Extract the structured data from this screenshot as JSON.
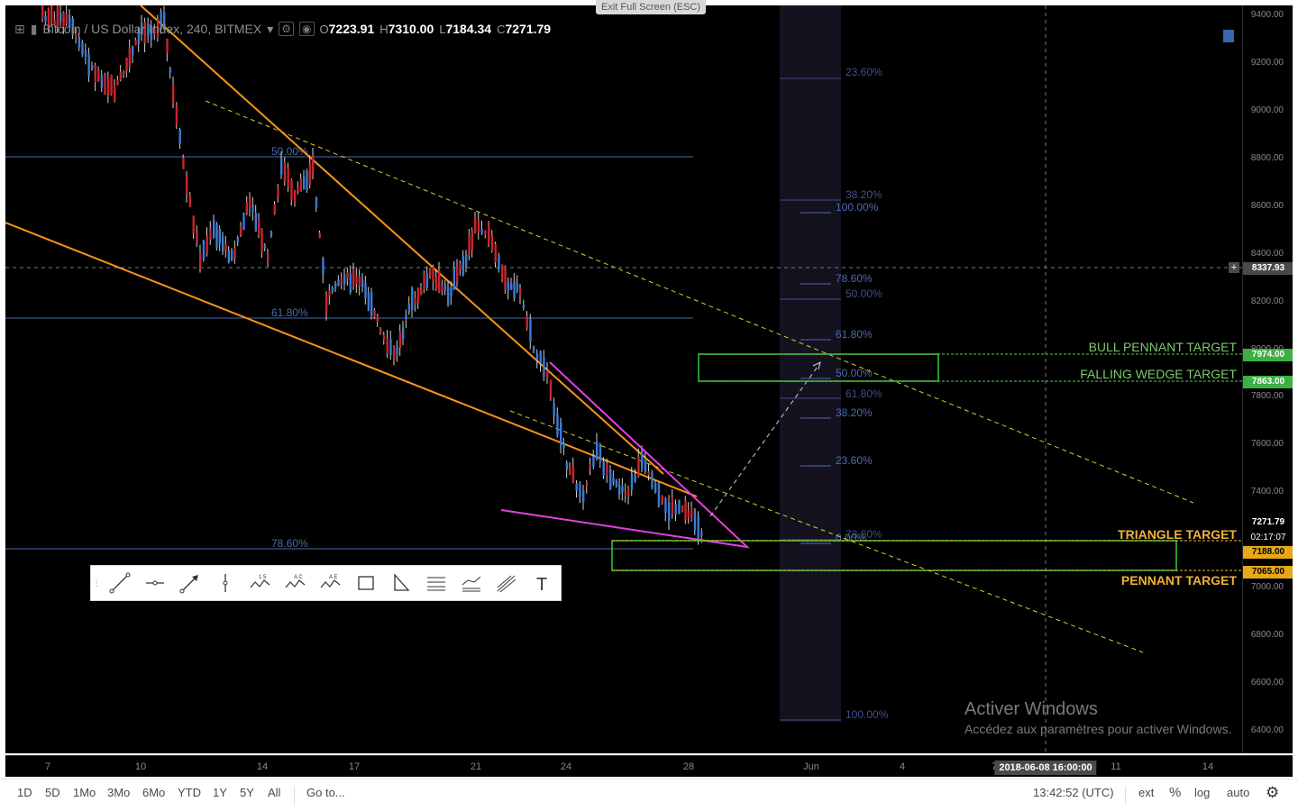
{
  "legend": {
    "symbol": "Bitcoin / US Dollar Index, 240, BITMEX",
    "o_label": "O",
    "o_value": "7223.91",
    "h_label": "H",
    "h_value": "7310.00",
    "l_label": "L",
    "l_value": "7184.34",
    "c_label": "C",
    "c_value": "7271.79"
  },
  "exit_fullscreen": "Exit Full Screen (ESC)",
  "price_axis": {
    "ticks": [
      "9400.00",
      "9200.00",
      "9000.00",
      "8800.00",
      "8600.00",
      "8400.00",
      "8200.00",
      "8000.00",
      "7800.00",
      "7600.00",
      "7400.00",
      "7000.00",
      "6800.00",
      "6600.00",
      "6400.00"
    ],
    "crosshair_value": "8337.93",
    "last_price": "7271.79",
    "countdown": "02:17:07",
    "tags": {
      "bull_pennant": "7974.00",
      "falling_wedge": "7863.00",
      "triangle": "7188.00",
      "pennant": "7065.00"
    }
  },
  "time_axis": {
    "labels": [
      "7",
      "10",
      "14",
      "17",
      "21",
      "24",
      "28",
      "Jun",
      "4",
      "7",
      "11",
      "14"
    ],
    "crosshair_time": "2018-06-08 16:00:00"
  },
  "fib_left": {
    "levels": [
      "50.00%",
      "61.80%",
      "78.60%"
    ]
  },
  "fib_right_a": {
    "levels": [
      "23.60%",
      "38.20%",
      "50.00%",
      "61.80%",
      "78.60%",
      "100.00%"
    ]
  },
  "fib_right_b": {
    "levels": [
      "100.00%",
      "78.60%",
      "61.80%",
      "50.00%",
      "38.20%",
      "23.60%",
      "0.00%"
    ]
  },
  "targets": {
    "bull_pennant": "BULL PENNANT TARGET",
    "falling_wedge": "FALLING WEDGE TARGET",
    "triangle": "TRIANGLE TARGET",
    "pennant": "PENNANT TARGET"
  },
  "toolbar": {
    "tools": [
      "trend-line",
      "horizontal-ray",
      "arrow",
      "vertical-line",
      "xabcd-pattern-15",
      "abcd-pattern",
      "elliott-wave",
      "rectangle",
      "triangle",
      "parallel-channel",
      "regression-trend",
      "pitchfork",
      "text"
    ]
  },
  "bottom_bar": {
    "ranges": [
      "1D",
      "5D",
      "1Mo",
      "3Mo",
      "6Mo",
      "YTD",
      "1Y",
      "5Y",
      "All"
    ],
    "goto": "Go to...",
    "clock": "13:42:52 (UTC)",
    "ext": "ext",
    "pct": "%",
    "log": "log",
    "auto": "auto"
  },
  "watermark": {
    "title": "Activer Windows",
    "subtitle": "Accédez aux paramètres pour activer Windows."
  },
  "colors": {
    "up": "#3a7bd5",
    "down": "#c9252c",
    "orange": "#f7931a",
    "magenta": "#e040e0",
    "green": "#33cc33",
    "yellow": "#d4d12a",
    "fib": "#5a6fb0"
  }
}
